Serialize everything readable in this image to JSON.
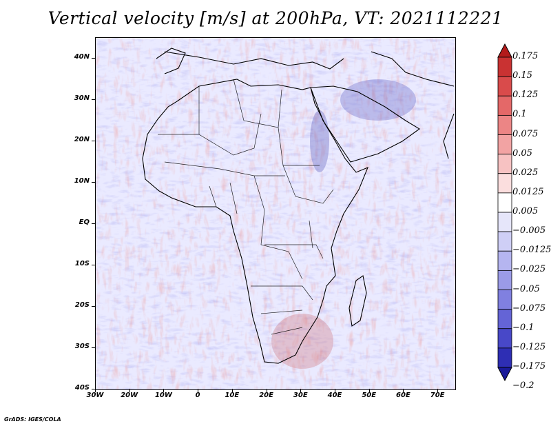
{
  "title": "Vertical velocity [m/s] at 200hPa, VT: 2021112221",
  "map": {
    "lat_ticks": [
      "40N",
      "30N",
      "20N",
      "10N",
      "EQ",
      "10S",
      "20S",
      "30S",
      "40S"
    ],
    "lon_ticks": [
      "30W",
      "20W",
      "10W",
      "0",
      "10E",
      "20E",
      "30E",
      "40E",
      "50E",
      "60E",
      "70E"
    ],
    "lat_range": [
      -40,
      45
    ],
    "lon_range": [
      -30,
      75
    ],
    "field": "vertical velocity at 200hPa",
    "region": "Africa"
  },
  "colorbar": {
    "labels": [
      "0.175",
      "0.15",
      "0.125",
      "0.1",
      "0.075",
      "0.05",
      "0.025",
      "0.0125",
      "0.005",
      "−0.005",
      "−0.0125",
      "−0.025",
      "−0.05",
      "−0.075",
      "−0.1",
      "−0.125",
      "−0.175",
      "−0.2"
    ],
    "colors": [
      "#b31b1b",
      "#c93232",
      "#d94b4b",
      "#e46868",
      "#ec8585",
      "#f2a3a3",
      "#f7c2c2",
      "#fbdede",
      "#ffffff",
      "#e6e6fa",
      "#cfcff6",
      "#b5b5f0",
      "#9b9be8",
      "#8080e0",
      "#6464d6",
      "#4848c8",
      "#2e2eb4",
      "#1a1a9a"
    ]
  },
  "credit": "GrADS: IGES/COLA"
}
